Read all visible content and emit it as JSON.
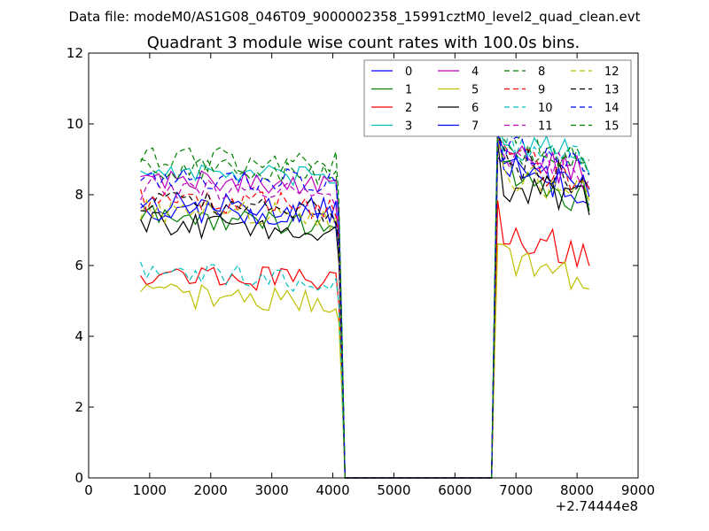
{
  "suptitle": "Data file: modeM0/AS1G08_046T09_9000002358_15991cztM0_level2_quad_clean.evt",
  "chart_data": {
    "type": "line",
    "title": "Quadrant 3 module wise count rates with 100.0s bins.",
    "xlabel": "",
    "ylabel": "",
    "x_offset_label": "+2.74444e8",
    "xlim": [
      0,
      9000
    ],
    "ylim": [
      0,
      12
    ],
    "xticks": [
      0,
      1000,
      2000,
      3000,
      4000,
      5000,
      6000,
      7000,
      8000,
      9000
    ],
    "xtick_labels": [
      "0",
      "1000",
      "2000",
      "3000",
      "4000",
      "5000",
      "6000",
      "7000",
      "8000",
      "9000"
    ],
    "yticks": [
      0,
      2,
      4,
      6,
      8,
      10,
      12
    ],
    "ytick_labels": [
      "0",
      "2",
      "4",
      "6",
      "8",
      "10",
      "12"
    ],
    "grid": false,
    "legend": {
      "position": "top-right",
      "columns": 4
    },
    "gaps": [
      [
        4200,
        6600
      ]
    ],
    "segment_ends": {
      "seg1_start": 850,
      "seg1_end": 4050,
      "seg2_start": 6700,
      "seg2_end": 8200,
      "step": 100
    },
    "series": [
      {
        "name": "0",
        "color": "#0000ff",
        "dash": "solid",
        "level1": 7.8,
        "amp1": 0.35,
        "level2": 8.8,
        "amp2": 0.5
      },
      {
        "name": "1",
        "color": "#008000",
        "dash": "solid",
        "level1": 7.4,
        "amp1": 0.35,
        "level2": 8.6,
        "amp2": 0.5
      },
      {
        "name": "2",
        "color": "#ff0000",
        "dash": "solid",
        "level1": 5.8,
        "amp1": 0.35,
        "level2": 7.0,
        "amp2": 0.45
      },
      {
        "name": "3",
        "color": "#00bfbf",
        "dash": "solid",
        "level1": 8.7,
        "amp1": 0.3,
        "level2": 9.6,
        "amp2": 0.5
      },
      {
        "name": "4",
        "color": "#bf00bf",
        "dash": "solid",
        "level1": 8.5,
        "amp1": 0.3,
        "level2": 9.2,
        "amp2": 0.5
      },
      {
        "name": "5",
        "color": "#bfbf00",
        "dash": "solid",
        "level1": 5.2,
        "amp1": 0.35,
        "level2": 6.3,
        "amp2": 0.45
      },
      {
        "name": "6",
        "color": "#000000",
        "dash": "solid",
        "level1": 7.2,
        "amp1": 0.35,
        "level2": 8.4,
        "amp2": 0.5
      },
      {
        "name": "7",
        "color": "#0000ff",
        "dash": "solid",
        "level1": 7.6,
        "amp1": 0.35,
        "level2": 8.9,
        "amp2": 0.5
      },
      {
        "name": "8",
        "color": "#008000",
        "dash": "dashed",
        "level1": 8.8,
        "amp1": 0.35,
        "level2": 9.5,
        "amp2": 0.5
      },
      {
        "name": "9",
        "color": "#ff0000",
        "dash": "dashed",
        "level1": 7.9,
        "amp1": 0.35,
        "level2": 9.1,
        "amp2": 0.5
      },
      {
        "name": "10",
        "color": "#00bfbf",
        "dash": "dashed",
        "level1": 5.8,
        "amp1": 0.35,
        "level2": 9.6,
        "amp2": 0.5
      },
      {
        "name": "11",
        "color": "#bf00bf",
        "dash": "dashed",
        "level1": 8.2,
        "amp1": 0.35,
        "level2": 9.3,
        "amp2": 0.5
      },
      {
        "name": "12",
        "color": "#bfbf00",
        "dash": "dashed",
        "level1": 7.6,
        "amp1": 0.35,
        "level2": 8.7,
        "amp2": 0.5
      },
      {
        "name": "13",
        "color": "#000000",
        "dash": "dashed",
        "level1": 7.8,
        "amp1": 0.35,
        "level2": 9.0,
        "amp2": 0.5
      },
      {
        "name": "14",
        "color": "#0000ff",
        "dash": "dashed",
        "level1": 8.6,
        "amp1": 0.35,
        "level2": 9.4,
        "amp2": 0.5
      },
      {
        "name": "15",
        "color": "#008000",
        "dash": "dashed",
        "level1": 9.1,
        "amp1": 0.4,
        "level2": 9.8,
        "amp2": 0.5
      }
    ]
  }
}
